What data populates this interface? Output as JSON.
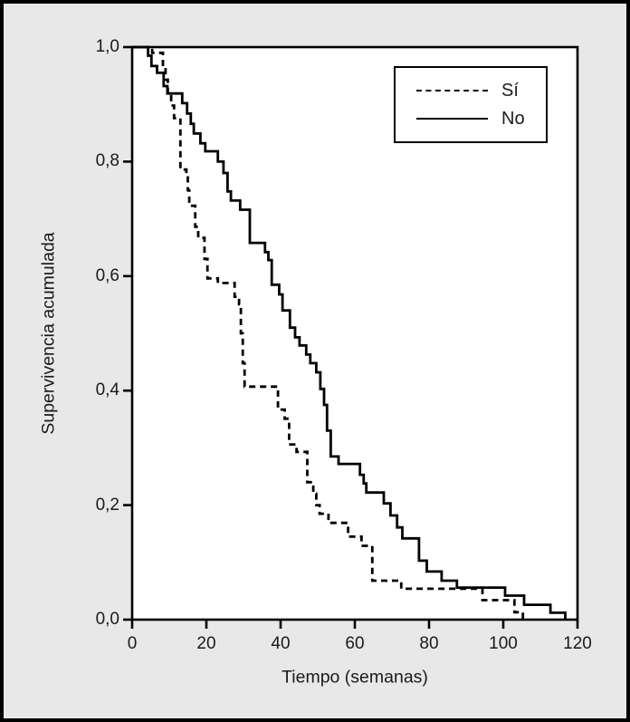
{
  "figure": {
    "background_color": "#e8e8e8",
    "plot_background_color": "#ffffff",
    "frame_color": "#000000"
  },
  "chart_data": {
    "type": "line",
    "subtype": "kaplan-meier-step",
    "title": "",
    "xlabel": "Tiempo (semanas)",
    "ylabel": "Supervivencia acumulada",
    "xlim": [
      0,
      120
    ],
    "ylim": [
      0.0,
      1.0
    ],
    "grid": false,
    "legend_position": "top-right",
    "x_ticks": [
      {
        "value": 0,
        "label": "0"
      },
      {
        "value": 20,
        "label": "20"
      },
      {
        "value": 40,
        "label": "40"
      },
      {
        "value": 60,
        "label": "60"
      },
      {
        "value": 80,
        "label": "80"
      },
      {
        "value": 100,
        "label": "100"
      },
      {
        "value": 120,
        "label": "120"
      }
    ],
    "y_ticks": [
      {
        "value": 0.0,
        "label": "0,0"
      },
      {
        "value": 0.2,
        "label": "0,2"
      },
      {
        "value": 0.4,
        "label": "0,4"
      },
      {
        "value": 0.6,
        "label": "0,6"
      },
      {
        "value": 0.8,
        "label": "0,8"
      },
      {
        "value": 1.0,
        "label": "1,0"
      }
    ],
    "series": [
      {
        "name": "Sí",
        "style": "dashed",
        "color": "#000000",
        "points": [
          [
            0,
            1.0
          ],
          [
            5.4,
            0.99
          ],
          [
            8.3,
            0.966
          ],
          [
            9.0,
            0.943
          ],
          [
            9.6,
            0.92
          ],
          [
            10.5,
            0.898
          ],
          [
            11.3,
            0.876
          ],
          [
            13.0,
            0.786
          ],
          [
            14.6,
            0.775
          ],
          [
            15.0,
            0.75
          ],
          [
            15.4,
            0.723
          ],
          [
            17.0,
            0.686
          ],
          [
            17.8,
            0.667
          ],
          [
            19.5,
            0.63
          ],
          [
            20.3,
            0.596
          ],
          [
            23.1,
            0.588
          ],
          [
            27.6,
            0.564
          ],
          [
            28.8,
            0.551
          ],
          [
            29.3,
            0.5
          ],
          [
            29.8,
            0.448
          ],
          [
            30.3,
            0.407
          ],
          [
            39.3,
            0.367
          ],
          [
            41.1,
            0.351
          ],
          [
            42.3,
            0.306
          ],
          [
            44.3,
            0.293
          ],
          [
            47.2,
            0.24
          ],
          [
            48.8,
            0.22
          ],
          [
            49.6,
            0.2
          ],
          [
            50.5,
            0.185
          ],
          [
            52.9,
            0.169
          ],
          [
            58.2,
            0.145
          ],
          [
            61.8,
            0.129
          ],
          [
            64.7,
            0.068
          ],
          [
            72.5,
            0.054
          ],
          [
            94.4,
            0.034
          ],
          [
            103.0,
            0.013
          ],
          [
            105.3,
            0.0
          ]
        ]
      },
      {
        "name": "No",
        "style": "solid",
        "color": "#000000",
        "points": [
          [
            0,
            1.0
          ],
          [
            4.3,
            0.985
          ],
          [
            5.2,
            0.967
          ],
          [
            6.7,
            0.955
          ],
          [
            8.5,
            0.932
          ],
          [
            9.5,
            0.919
          ],
          [
            13.5,
            0.902
          ],
          [
            14.8,
            0.884
          ],
          [
            15.8,
            0.866
          ],
          [
            16.6,
            0.849
          ],
          [
            18.4,
            0.832
          ],
          [
            19.7,
            0.818
          ],
          [
            23.1,
            0.8
          ],
          [
            24.6,
            0.78
          ],
          [
            25.7,
            0.748
          ],
          [
            26.6,
            0.732
          ],
          [
            29.1,
            0.716
          ],
          [
            31.7,
            0.658
          ],
          [
            35.8,
            0.642
          ],
          [
            36.7,
            0.628
          ],
          [
            37.6,
            0.585
          ],
          [
            39.6,
            0.568
          ],
          [
            40.5,
            0.54
          ],
          [
            42.5,
            0.51
          ],
          [
            43.9,
            0.493
          ],
          [
            45.1,
            0.479
          ],
          [
            46.9,
            0.463
          ],
          [
            48.0,
            0.448
          ],
          [
            49.6,
            0.432
          ],
          [
            50.7,
            0.403
          ],
          [
            51.7,
            0.375
          ],
          [
            52.5,
            0.33
          ],
          [
            53.5,
            0.285
          ],
          [
            55.6,
            0.272
          ],
          [
            61.4,
            0.253
          ],
          [
            62.4,
            0.238
          ],
          [
            63.1,
            0.222
          ],
          [
            67.8,
            0.203
          ],
          [
            69.6,
            0.182
          ],
          [
            71.4,
            0.161
          ],
          [
            72.8,
            0.142
          ],
          [
            77.3,
            0.103
          ],
          [
            79.4,
            0.084
          ],
          [
            83.4,
            0.068
          ],
          [
            87.5,
            0.056
          ],
          [
            100.5,
            0.042
          ],
          [
            105.6,
            0.026
          ],
          [
            112.7,
            0.012
          ],
          [
            116.7,
            0.0
          ]
        ]
      }
    ]
  }
}
